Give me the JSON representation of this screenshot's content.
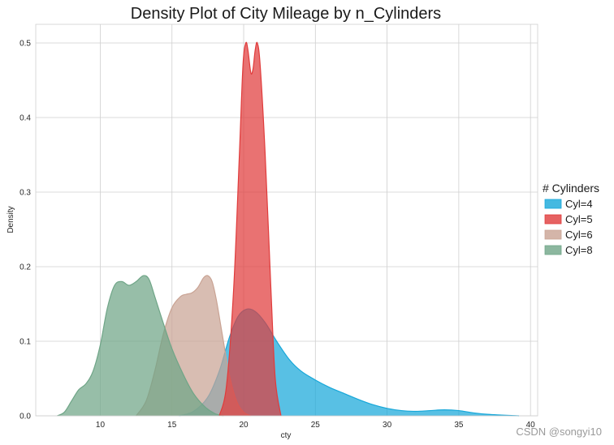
{
  "chart_data": {
    "type": "area",
    "title": "Density Plot of City Mileage by n_Cylinders",
    "xlabel": "cty",
    "ylabel": "Density",
    "xlim": [
      5.5,
      40.5
    ],
    "ylim": [
      0,
      0.525
    ],
    "xticks": [
      10,
      15,
      20,
      25,
      30,
      35,
      40
    ],
    "yticks": [
      0.0,
      0.1,
      0.2,
      0.3,
      0.4,
      0.5
    ],
    "grid": true,
    "legend": {
      "title": "# Cylinders",
      "placement": "right"
    },
    "series": [
      {
        "name": "Cyl=4",
        "color": "#17a7d9",
        "points": [
          [
            15.5,
            0
          ],
          [
            16.5,
            0.006
          ],
          [
            17.5,
            0.025
          ],
          [
            18.3,
            0.06
          ],
          [
            19.0,
            0.105
          ],
          [
            19.6,
            0.133
          ],
          [
            20.2,
            0.143
          ],
          [
            20.8,
            0.14
          ],
          [
            21.5,
            0.125
          ],
          [
            22.3,
            0.1
          ],
          [
            23.2,
            0.075
          ],
          [
            24.0,
            0.06
          ],
          [
            25.0,
            0.048
          ],
          [
            26.0,
            0.038
          ],
          [
            27.0,
            0.03
          ],
          [
            28.0,
            0.022
          ],
          [
            29.0,
            0.015
          ],
          [
            30.0,
            0.01
          ],
          [
            31.0,
            0.007
          ],
          [
            32.0,
            0.006
          ],
          [
            33.0,
            0.007
          ],
          [
            34.0,
            0.008
          ],
          [
            35.0,
            0.007
          ],
          [
            36.0,
            0.004
          ],
          [
            37.0,
            0.002
          ],
          [
            38.0,
            0.001
          ],
          [
            39.2,
            0
          ]
        ]
      },
      {
        "name": "Cyl=5",
        "color": "#e03b3b",
        "points": [
          [
            18.3,
            0
          ],
          [
            18.8,
            0.04
          ],
          [
            19.3,
            0.17
          ],
          [
            19.7,
            0.35
          ],
          [
            19.95,
            0.47
          ],
          [
            20.15,
            0.5
          ],
          [
            20.3,
            0.49
          ],
          [
            20.5,
            0.46
          ],
          [
            20.65,
            0.465
          ],
          [
            20.8,
            0.49
          ],
          [
            20.95,
            0.5
          ],
          [
            21.15,
            0.47
          ],
          [
            21.5,
            0.35
          ],
          [
            21.9,
            0.17
          ],
          [
            22.2,
            0.05
          ],
          [
            22.6,
            0
          ]
        ]
      },
      {
        "name": "Cyl=6",
        "color": "#c9a394",
        "points": [
          [
            12.5,
            0
          ],
          [
            13.2,
            0.02
          ],
          [
            13.8,
            0.06
          ],
          [
            14.4,
            0.11
          ],
          [
            15.0,
            0.145
          ],
          [
            15.6,
            0.16
          ],
          [
            16.0,
            0.163
          ],
          [
            16.4,
            0.165
          ],
          [
            16.8,
            0.172
          ],
          [
            17.2,
            0.185
          ],
          [
            17.5,
            0.188
          ],
          [
            17.8,
            0.18
          ],
          [
            18.1,
            0.155
          ],
          [
            18.5,
            0.11
          ],
          [
            19.0,
            0.055
          ],
          [
            19.5,
            0.02
          ],
          [
            20.0,
            0.005
          ],
          [
            20.5,
            0
          ]
        ]
      },
      {
        "name": "Cyl=8",
        "color": "#6fa587",
        "points": [
          [
            7.0,
            0
          ],
          [
            7.5,
            0.005
          ],
          [
            8.0,
            0.02
          ],
          [
            8.5,
            0.035
          ],
          [
            9.0,
            0.043
          ],
          [
            9.5,
            0.06
          ],
          [
            10.0,
            0.095
          ],
          [
            10.5,
            0.145
          ],
          [
            11.0,
            0.175
          ],
          [
            11.5,
            0.18
          ],
          [
            12.0,
            0.175
          ],
          [
            12.5,
            0.18
          ],
          [
            13.0,
            0.188
          ],
          [
            13.4,
            0.183
          ],
          [
            13.8,
            0.16
          ],
          [
            14.3,
            0.13
          ],
          [
            15.0,
            0.09
          ],
          [
            15.8,
            0.055
          ],
          [
            16.5,
            0.03
          ],
          [
            17.3,
            0.012
          ],
          [
            18.0,
            0.003
          ],
          [
            18.6,
            0
          ]
        ]
      }
    ],
    "draw_order": [
      "Cyl=4",
      "Cyl=6",
      "Cyl=8",
      "Cyl=5"
    ]
  },
  "watermark": "CSDN @songyi10"
}
